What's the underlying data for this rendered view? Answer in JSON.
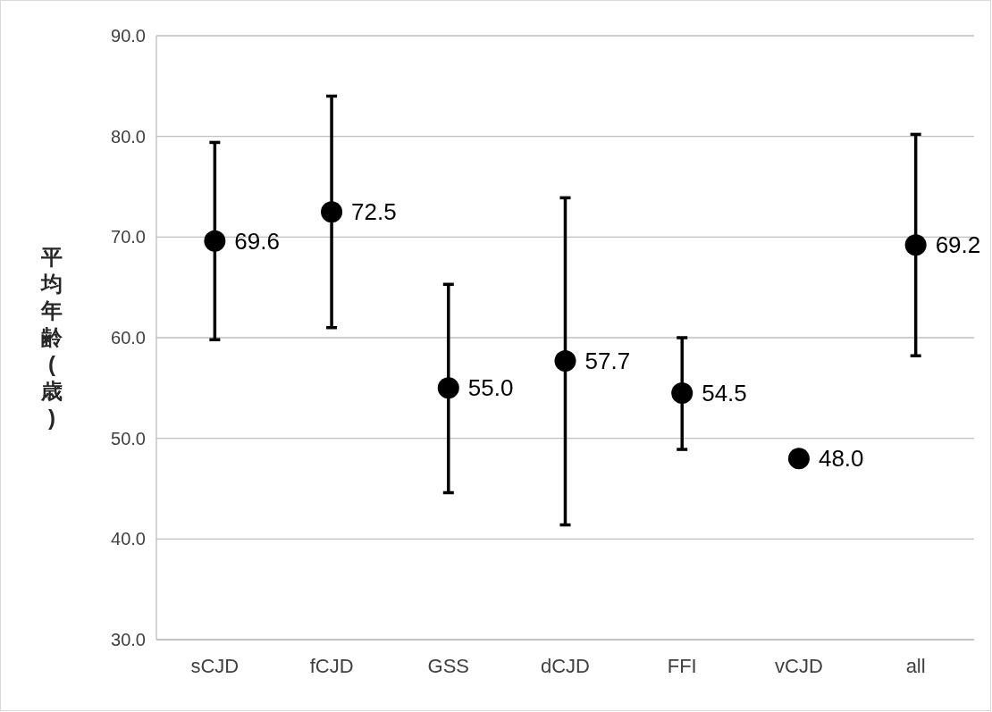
{
  "chart_data": {
    "type": "scatter",
    "ylabel": "平均年齢(歳)",
    "categories": [
      "sCJD",
      "fCJD",
      "GSS",
      "dCJD",
      "FFI",
      "vCJD",
      "all"
    ],
    "values": [
      69.6,
      72.5,
      55.0,
      57.7,
      54.5,
      48.0,
      69.2
    ],
    "errors": [
      [
        59.8,
        79.4
      ],
      [
        61.0,
        84.0
      ],
      [
        44.6,
        65.3
      ],
      [
        41.4,
        73.9
      ],
      [
        48.9,
        60.0
      ],
      null,
      [
        58.2,
        80.2
      ]
    ],
    "value_labels": [
      "69.6",
      "72.5",
      "55.0",
      "57.7",
      "54.5",
      "48.0",
      "69.2"
    ],
    "color": "#000000",
    "marker": "circle",
    "ylim": [
      30,
      90
    ],
    "yticks": [
      {
        "value": 30,
        "label": "30.0"
      },
      {
        "value": 40,
        "label": "40.0"
      },
      {
        "value": 50,
        "label": "50.0"
      },
      {
        "value": 60,
        "label": "60.0"
      },
      {
        "value": 70,
        "label": "70.0"
      },
      {
        "value": 80,
        "label": "80.0"
      },
      {
        "value": 90,
        "label": "90.0"
      }
    ],
    "grid": "y"
  }
}
